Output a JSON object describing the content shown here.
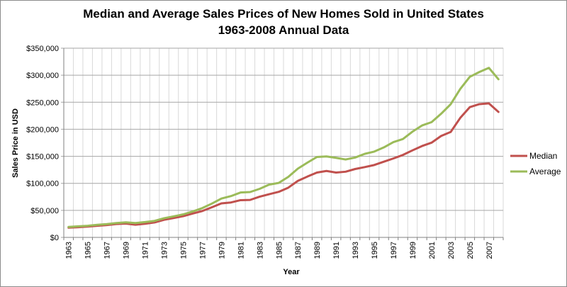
{
  "chart_data": {
    "type": "line",
    "title": "Median and Average Sales Prices of New Homes Sold in United States",
    "subtitle": "1963-2008 Annual Data",
    "xlabel": "Year",
    "ylabel": "Sales Price in USD",
    "ylim": [
      0,
      350000
    ],
    "yticks": [
      "$0",
      "$50,000",
      "$100,000",
      "$150,000",
      "$200,000",
      "$250,000",
      "$300,000",
      "$350,000"
    ],
    "grid": true,
    "legend_position": "right",
    "x": [
      1963,
      1964,
      1965,
      1966,
      1967,
      1968,
      1969,
      1970,
      1971,
      1972,
      1973,
      1974,
      1975,
      1976,
      1977,
      1978,
      1979,
      1980,
      1981,
      1982,
      1983,
      1984,
      1985,
      1986,
      1987,
      1988,
      1989,
      1990,
      1991,
      1992,
      1993,
      1994,
      1995,
      1996,
      1997,
      1998,
      1999,
      2000,
      2001,
      2002,
      2003,
      2004,
      2005,
      2006,
      2007,
      2008
    ],
    "series": [
      {
        "name": "Median",
        "color": "#c0504d",
        "values": [
          18000,
          18900,
          20000,
          21400,
          22700,
          24700,
          25600,
          23400,
          25200,
          27600,
          32500,
          35900,
          39300,
          44200,
          48800,
          55700,
          62900,
          64600,
          68900,
          69300,
          75300,
          79900,
          84300,
          92000,
          104500,
          112500,
          120000,
          122900,
          120000,
          121500,
          126500,
          130000,
          133900,
          140000,
          146000,
          152500,
          161000,
          169000,
          175200,
          187600,
          195000,
          221000,
          240900,
          246500,
          247900,
          232100
        ]
      },
      {
        "name": "Average",
        "color": "#9bbb59",
        "values": [
          19300,
          20500,
          21500,
          23300,
          24600,
          26600,
          27900,
          26600,
          28300,
          30500,
          35500,
          38900,
          42600,
          48000,
          54200,
          62500,
          71800,
          76400,
          83000,
          83900,
          89800,
          97600,
          100800,
          111900,
          127200,
          138300,
          148800,
          149800,
          147200,
          144100,
          147700,
          154500,
          158700,
          166400,
          176200,
          181900,
          195600,
          207000,
          213200,
          228700,
          246300,
          274500,
          297000,
          305900,
          313600,
          292600
        ]
      }
    ]
  }
}
